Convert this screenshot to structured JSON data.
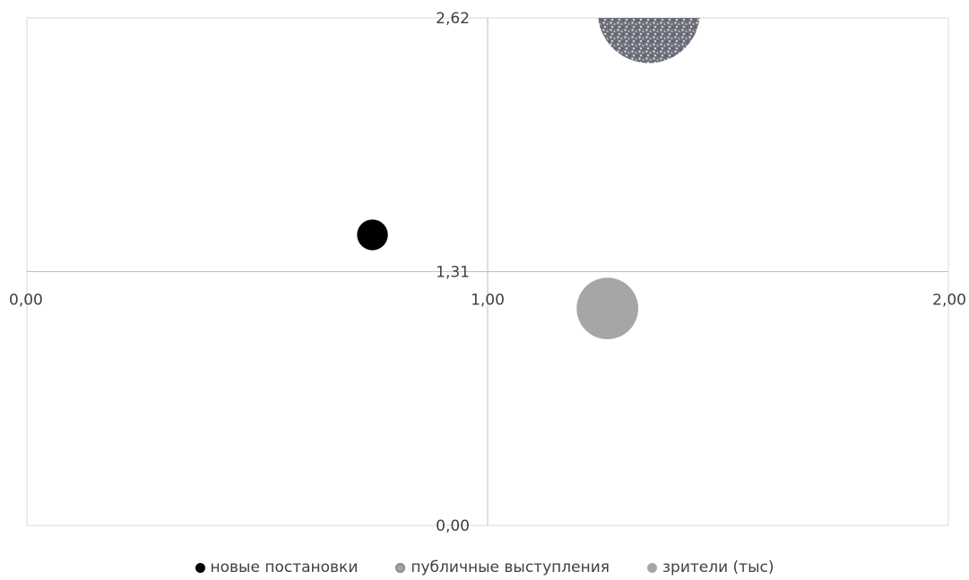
{
  "chart_data": {
    "type": "scatter",
    "subtype": "bubble",
    "title": "",
    "xlabel": "",
    "ylabel": "",
    "xlim": [
      0,
      2
    ],
    "ylim": [
      0,
      2.62
    ],
    "x_ticks": [
      "0,00",
      "1,00",
      "2,00"
    ],
    "y_ticks": [
      "0,00",
      "1,31",
      "2,62"
    ],
    "axes_cross": {
      "x": 1.0,
      "y": 1.31
    },
    "grid": false,
    "legend_position": "bottom",
    "series": [
      {
        "name": "новые постановки",
        "color": "#000000",
        "fill": "solid",
        "points": [
          {
            "x": 0.75,
            "y": 1.5,
            "size": 1
          }
        ]
      },
      {
        "name": "публичные выступления",
        "color": "#8a8c95",
        "fill": "speckled",
        "points": [
          {
            "x": 1.35,
            "y": 2.65,
            "size": 11
          }
        ]
      },
      {
        "name": "зрители (тыс)",
        "color": "#a6a6a6",
        "fill": "solid",
        "points": [
          {
            "x": 1.26,
            "y": 1.12,
            "size": 4
          }
        ]
      }
    ]
  }
}
